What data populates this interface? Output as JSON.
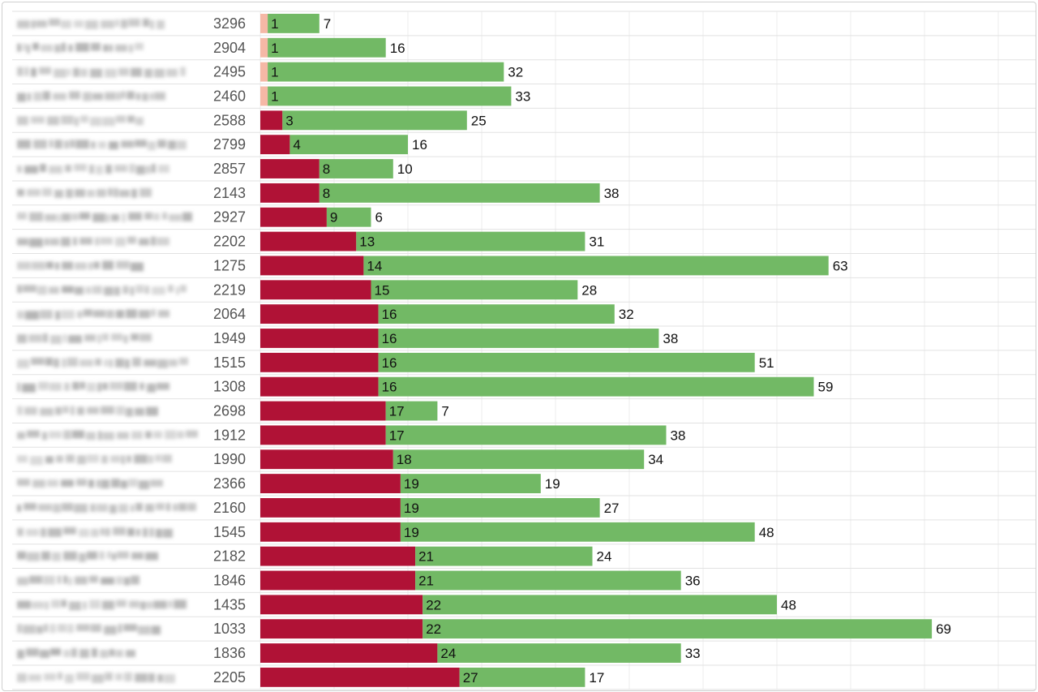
{
  "chart_data": {
    "type": "bar",
    "orientation": "horizontal",
    "stacked": true,
    "title": "",
    "xlabel": "",
    "ylabel": "",
    "xlim": [
      0,
      100
    ],
    "grid": true,
    "legend": "none",
    "categories": [
      "3296",
      "2904",
      "2495",
      "2460",
      "2588",
      "2799",
      "2857",
      "2143",
      "2927",
      "2202",
      "1275",
      "2219",
      "2064",
      "1949",
      "1515",
      "1308",
      "2698",
      "1912",
      "1990",
      "2366",
      "2160",
      "1545",
      "2182",
      "1846",
      "1435",
      "1033",
      "1836",
      "2205"
    ],
    "series": [
      {
        "color": "#b01236",
        "values": [
          1,
          1,
          1,
          1,
          3,
          4,
          8,
          8,
          9,
          13,
          14,
          15,
          16,
          16,
          16,
          16,
          17,
          17,
          18,
          19,
          19,
          19,
          21,
          21,
          22,
          22,
          24,
          27
        ]
      },
      {
        "color": "#72b965",
        "values": [
          7,
          16,
          32,
          33,
          25,
          16,
          10,
          38,
          6,
          31,
          63,
          28,
          32,
          38,
          51,
          59,
          7,
          38,
          34,
          19,
          27,
          48,
          24,
          36,
          48,
          69,
          33,
          17
        ]
      }
    ],
    "low_value_color": "#f5b8a6"
  }
}
